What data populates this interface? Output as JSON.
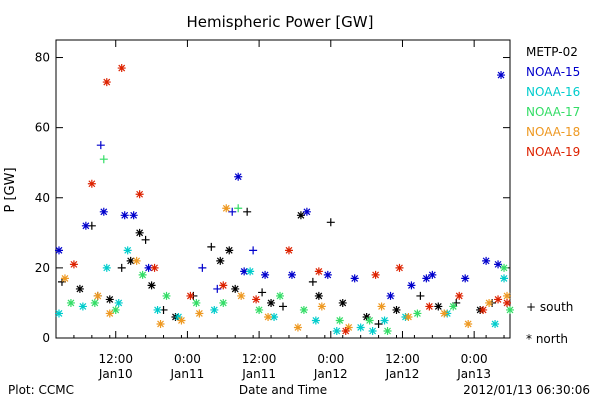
{
  "footer": {
    "plot_credit": "Plot: CCMC",
    "timestamp": "2012/01/13 06:30:06"
  },
  "chart_data": {
    "type": "scatter",
    "title": "Hemispheric Power [GW]",
    "xlabel": "Date and Time",
    "ylabel": "P [GW]",
    "ylim": [
      0,
      85
    ],
    "xlim": [
      "2012-01-10T02:00",
      "2012-01-13T06:00"
    ],
    "x_ticks": [
      {
        "time": "12:00",
        "date": "Jan10",
        "at": "2012-01-10T12:00"
      },
      {
        "time": "0:00",
        "date": "Jan11",
        "at": "2012-01-11T00:00"
      },
      {
        "time": "12:00",
        "date": "Jan11",
        "at": "2012-01-11T12:00"
      },
      {
        "time": "0:00",
        "date": "Jan12",
        "at": "2012-01-12T00:00"
      },
      {
        "time": "12:00",
        "date": "Jan12",
        "at": "2012-01-12T12:00"
      },
      {
        "time": "0:00",
        "date": "Jan13",
        "at": "2012-01-13T00:00"
      }
    ],
    "y_ticks": [
      0,
      20,
      40,
      60,
      80
    ],
    "legend": {
      "placement": "right",
      "hemispheres": [
        {
          "key": "south",
          "marker": "+",
          "label": "+ south"
        },
        {
          "key": "north",
          "marker": "*",
          "label": "* north"
        }
      ]
    },
    "series": [
      {
        "name": "METP-02",
        "color": "#000000",
        "points": [
          [
            "2012-01-10T03:00",
            "south",
            16
          ],
          [
            "2012-01-10T06:00",
            "north",
            14
          ],
          [
            "2012-01-10T08:00",
            "south",
            32
          ],
          [
            "2012-01-10T09:00",
            "south",
            12
          ],
          [
            "2012-01-10T11:00",
            "north",
            11
          ],
          [
            "2012-01-10T13:00",
            "south",
            20
          ],
          [
            "2012-01-10T14:30",
            "north",
            22
          ],
          [
            "2012-01-10T16:00",
            "north",
            30
          ],
          [
            "2012-01-10T17:00",
            "south",
            28
          ],
          [
            "2012-01-10T18:00",
            "north",
            15
          ],
          [
            "2012-01-10T20:00",
            "south",
            8
          ],
          [
            "2012-01-10T22:00",
            "north",
            6
          ],
          [
            "2012-01-11T01:00",
            "south",
            12
          ],
          [
            "2012-01-11T04:00",
            "south",
            26
          ],
          [
            "2012-01-11T05:30",
            "north",
            22
          ],
          [
            "2012-01-11T07:00",
            "north",
            25
          ],
          [
            "2012-01-11T08:00",
            "north",
            14
          ],
          [
            "2012-01-11T10:00",
            "south",
            36
          ],
          [
            "2012-01-11T12:30",
            "south",
            13
          ],
          [
            "2012-01-11T14:00",
            "north",
            10
          ],
          [
            "2012-01-11T16:00",
            "south",
            9
          ],
          [
            "2012-01-11T19:00",
            "north",
            35
          ],
          [
            "2012-01-11T21:00",
            "south",
            16
          ],
          [
            "2012-01-11T22:00",
            "north",
            12
          ],
          [
            "2012-01-12T00:00",
            "south",
            33
          ],
          [
            "2012-01-12T02:00",
            "north",
            10
          ],
          [
            "2012-01-12T06:00",
            "north",
            6
          ],
          [
            "2012-01-12T08:00",
            "south",
            4
          ],
          [
            "2012-01-12T11:00",
            "north",
            8
          ],
          [
            "2012-01-12T15:00",
            "south",
            12
          ],
          [
            "2012-01-12T18:00",
            "north",
            9
          ],
          [
            "2012-01-12T21:00",
            "south",
            10
          ],
          [
            "2012-01-13T01:00",
            "north",
            8
          ],
          [
            "2012-01-13T03:00",
            "south",
            10
          ]
        ]
      },
      {
        "name": "NOAA-15",
        "color": "#0000cc",
        "points": [
          [
            "2012-01-10T02:30",
            "north",
            25
          ],
          [
            "2012-01-10T07:00",
            "north",
            32
          ],
          [
            "2012-01-10T09:30",
            "south",
            55
          ],
          [
            "2012-01-10T10:00",
            "north",
            36
          ],
          [
            "2012-01-10T13:30",
            "north",
            35
          ],
          [
            "2012-01-10T15:00",
            "north",
            35
          ],
          [
            "2012-01-10T17:30",
            "north",
            20
          ],
          [
            "2012-01-11T02:30",
            "south",
            20
          ],
          [
            "2012-01-11T05:00",
            "south",
            14
          ],
          [
            "2012-01-11T07:30",
            "south",
            36
          ],
          [
            "2012-01-11T08:30",
            "north",
            46
          ],
          [
            "2012-01-11T09:30",
            "north",
            19
          ],
          [
            "2012-01-11T11:00",
            "south",
            25
          ],
          [
            "2012-01-11T13:00",
            "north",
            18
          ],
          [
            "2012-01-11T17:30",
            "north",
            18
          ],
          [
            "2012-01-11T20:00",
            "north",
            36
          ],
          [
            "2012-01-11T23:30",
            "north",
            18
          ],
          [
            "2012-01-12T04:00",
            "north",
            17
          ],
          [
            "2012-01-12T10:00",
            "north",
            12
          ],
          [
            "2012-01-12T13:30",
            "north",
            15
          ],
          [
            "2012-01-12T16:00",
            "north",
            17
          ],
          [
            "2012-01-12T17:00",
            "north",
            18
          ],
          [
            "2012-01-12T22:30",
            "north",
            17
          ],
          [
            "2012-01-13T02:00",
            "north",
            22
          ],
          [
            "2012-01-13T04:00",
            "north",
            21
          ],
          [
            "2012-01-13T04:30",
            "north",
            75
          ]
        ]
      },
      {
        "name": "NOAA-16",
        "color": "#00cccc",
        "points": [
          [
            "2012-01-10T02:30",
            "north",
            7
          ],
          [
            "2012-01-10T06:30",
            "north",
            9
          ],
          [
            "2012-01-10T10:30",
            "north",
            20
          ],
          [
            "2012-01-10T12:30",
            "north",
            10
          ],
          [
            "2012-01-10T14:00",
            "north",
            25
          ],
          [
            "2012-01-10T19:00",
            "north",
            8
          ],
          [
            "2012-01-10T22:30",
            "north",
            6
          ],
          [
            "2012-01-11T04:30",
            "north",
            8
          ],
          [
            "2012-01-11T10:30",
            "north",
            19
          ],
          [
            "2012-01-11T14:30",
            "north",
            6
          ],
          [
            "2012-01-11T21:30",
            "north",
            5
          ],
          [
            "2012-01-12T01:00",
            "north",
            2
          ],
          [
            "2012-01-12T05:00",
            "north",
            3
          ],
          [
            "2012-01-12T07:00",
            "north",
            2
          ],
          [
            "2012-01-12T09:00",
            "north",
            5
          ],
          [
            "2012-01-12T12:30",
            "north",
            6
          ],
          [
            "2012-01-12T19:30",
            "north",
            7
          ],
          [
            "2012-01-13T03:30",
            "north",
            4
          ],
          [
            "2012-01-13T05:00",
            "north",
            17
          ]
        ]
      },
      {
        "name": "NOAA-17",
        "color": "#33dd66",
        "points": [
          [
            "2012-01-10T04:30",
            "north",
            10
          ],
          [
            "2012-01-10T08:30",
            "north",
            10
          ],
          [
            "2012-01-10T10:00",
            "south",
            51
          ],
          [
            "2012-01-10T12:00",
            "north",
            8
          ],
          [
            "2012-01-10T16:30",
            "north",
            18
          ],
          [
            "2012-01-10T20:30",
            "north",
            12
          ],
          [
            "2012-01-11T01:30",
            "north",
            10
          ],
          [
            "2012-01-11T06:00",
            "north",
            10
          ],
          [
            "2012-01-11T08:30",
            "south",
            37
          ],
          [
            "2012-01-11T12:00",
            "north",
            8
          ],
          [
            "2012-01-11T15:30",
            "north",
            12
          ],
          [
            "2012-01-11T19:30",
            "north",
            8
          ],
          [
            "2012-01-12T01:30",
            "north",
            5
          ],
          [
            "2012-01-12T06:30",
            "north",
            5
          ],
          [
            "2012-01-12T09:30",
            "north",
            2
          ],
          [
            "2012-01-12T14:30",
            "north",
            7
          ],
          [
            "2012-01-12T20:30",
            "north",
            9
          ],
          [
            "2012-01-13T05:00",
            "north",
            20
          ],
          [
            "2012-01-13T06:00",
            "north",
            8
          ]
        ]
      },
      {
        "name": "NOAA-18",
        "color": "#ee9922",
        "points": [
          [
            "2012-01-10T03:30",
            "north",
            17
          ],
          [
            "2012-01-10T09:00",
            "north",
            12
          ],
          [
            "2012-01-10T11:00",
            "north",
            7
          ],
          [
            "2012-01-10T15:30",
            "north",
            22
          ],
          [
            "2012-01-10T19:30",
            "north",
            4
          ],
          [
            "2012-01-10T23:00",
            "north",
            5
          ],
          [
            "2012-01-11T02:00",
            "north",
            7
          ],
          [
            "2012-01-11T06:30",
            "north",
            37
          ],
          [
            "2012-01-11T09:00",
            "north",
            12
          ],
          [
            "2012-01-11T13:30",
            "north",
            6
          ],
          [
            "2012-01-11T18:30",
            "north",
            3
          ],
          [
            "2012-01-11T22:30",
            "north",
            9
          ],
          [
            "2012-01-12T03:00",
            "north",
            3
          ],
          [
            "2012-01-12T08:30",
            "north",
            9
          ],
          [
            "2012-01-12T13:00",
            "north",
            6
          ],
          [
            "2012-01-12T19:00",
            "north",
            7
          ],
          [
            "2012-01-12T23:00",
            "north",
            4
          ],
          [
            "2012-01-13T02:30",
            "north",
            10
          ],
          [
            "2012-01-13T05:30",
            "north",
            12
          ]
        ]
      },
      {
        "name": "NOAA-19",
        "color": "#dd2200",
        "points": [
          [
            "2012-01-10T05:00",
            "north",
            21
          ],
          [
            "2012-01-10T08:00",
            "north",
            44
          ],
          [
            "2012-01-10T10:30",
            "north",
            73
          ],
          [
            "2012-01-10T13:00",
            "north",
            77
          ],
          [
            "2012-01-10T16:00",
            "north",
            41
          ],
          [
            "2012-01-10T18:30",
            "north",
            20
          ],
          [
            "2012-01-11T00:30",
            "north",
            12
          ],
          [
            "2012-01-11T06:00",
            "north",
            15
          ],
          [
            "2012-01-11T11:30",
            "north",
            11
          ],
          [
            "2012-01-11T17:00",
            "north",
            25
          ],
          [
            "2012-01-11T22:00",
            "north",
            19
          ],
          [
            "2012-01-12T02:30",
            "north",
            2
          ],
          [
            "2012-01-12T07:30",
            "north",
            18
          ],
          [
            "2012-01-12T11:30",
            "north",
            20
          ],
          [
            "2012-01-12T16:30",
            "north",
            9
          ],
          [
            "2012-01-12T21:30",
            "north",
            12
          ],
          [
            "2012-01-13T01:30",
            "north",
            8
          ],
          [
            "2012-01-13T04:00",
            "north",
            11
          ],
          [
            "2012-01-13T05:30",
            "north",
            10
          ]
        ]
      }
    ]
  }
}
